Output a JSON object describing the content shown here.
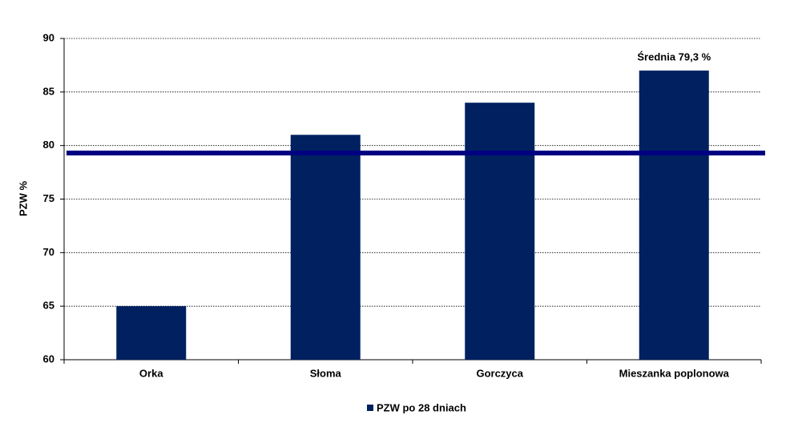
{
  "chart_data": {
    "type": "bar",
    "y_label": "PZW %",
    "categories": [
      "Orka",
      "Słoma",
      "Gorczyca",
      "Mieszanka poplonowa"
    ],
    "series": [
      {
        "name": "PZW po 28 dniach",
        "color": "#002060",
        "values": [
          65,
          81,
          84,
          87
        ]
      }
    ],
    "ylim": [
      60,
      90
    ],
    "yticks": [
      60,
      65,
      70,
      75,
      80,
      85,
      90
    ],
    "grid": true,
    "reference_line": {
      "label": "Średnia 79,3 %",
      "value": 79.3,
      "color": "#000080"
    },
    "legend": "bottom"
  }
}
